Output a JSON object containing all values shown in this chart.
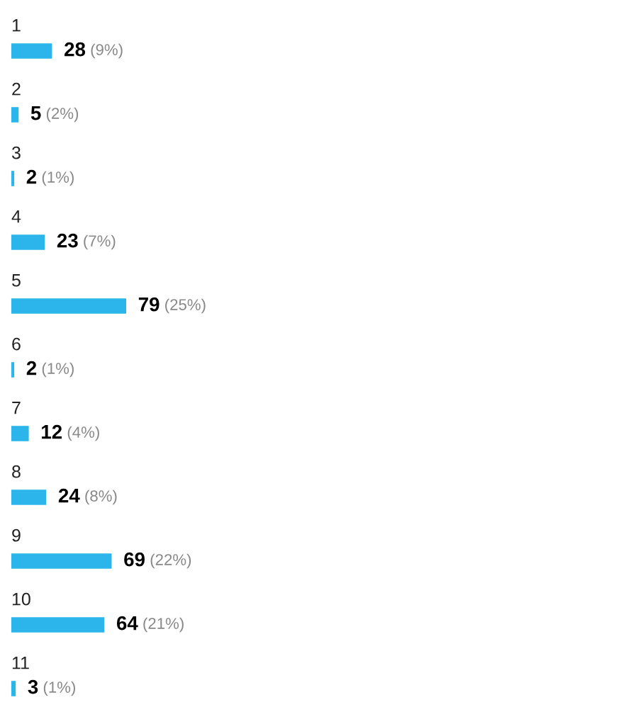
{
  "chart_data": {
    "type": "bar",
    "orientation": "horizontal",
    "categories": [
      "1",
      "2",
      "3",
      "4",
      "5",
      "6",
      "7",
      "8",
      "9",
      "10",
      "11"
    ],
    "values": [
      28,
      5,
      2,
      23,
      79,
      2,
      12,
      24,
      69,
      64,
      3
    ],
    "value_labels": [
      "28 (9%)",
      "5 (2%)",
      "2 (1%)",
      "23 (7%)",
      "79 (25%)",
      "2 (1%)",
      "12 (4%)",
      "24 (8%)",
      "69 (22%)",
      "64 (21%)",
      "3 (1%)"
    ],
    "color": "#2cb5ea"
  }
}
